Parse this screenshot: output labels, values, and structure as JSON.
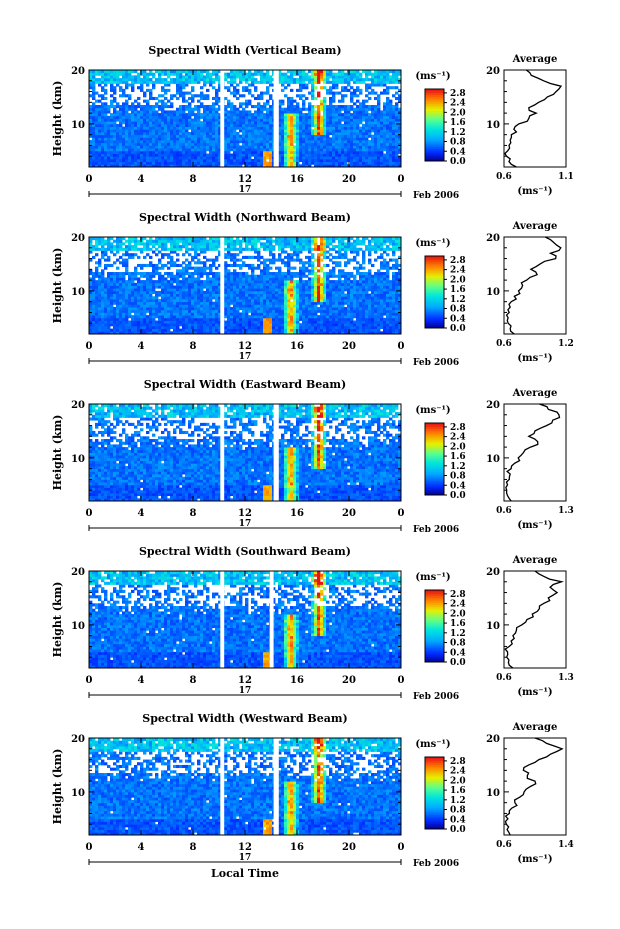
{
  "figure": {
    "xlabel": "Local Time",
    "date_label": "Feb 2006",
    "day_label": "17",
    "ylabel": "Height (km)",
    "unit_label": "(ms⁻¹)",
    "average_title": "Average"
  },
  "chart_data": [
    {
      "type": "heatmap",
      "title": "Spectral Width (Vertical Beam)",
      "xlabel": "Local Time",
      "ylabel": "Height (km)",
      "xticks": [
        "0",
        "4",
        "8",
        "12",
        "16",
        "20",
        "0"
      ],
      "xlim": [
        0,
        24
      ],
      "ylim": [
        2,
        20
      ],
      "yticks": [
        "10",
        "20"
      ],
      "colorbar": {
        "label": "(ms⁻¹)",
        "ticks": [
          "0.0",
          "0.4",
          "0.8",
          "1.2",
          "1.6",
          "2.0",
          "2.4",
          "2.8"
        ],
        "range": [
          0,
          2.8
        ]
      },
      "gaps_hours": [
        [
          10.1,
          10.4
        ],
        [
          14.2,
          14.6
        ]
      ],
      "profile": {
        "title": "Average",
        "xlabel": "(ms⁻¹)",
        "xticks": [
          "0.6",
          "1.1"
        ],
        "xlim": [
          0.6,
          1.1
        ],
        "yticks": [
          "10",
          "20"
        ],
        "height_km": [
          2,
          3,
          4,
          5,
          6,
          7,
          8,
          9,
          10,
          11,
          12,
          13,
          14,
          15,
          16,
          17,
          18,
          19,
          20
        ],
        "value": [
          0.7,
          0.64,
          0.62,
          0.63,
          0.64,
          0.65,
          0.66,
          0.68,
          0.72,
          0.8,
          0.86,
          0.8,
          0.88,
          0.95,
          1.02,
          1.06,
          0.92,
          0.82,
          0.78
        ]
      }
    },
    {
      "type": "heatmap",
      "title": "Spectral Width (Northward Beam)",
      "xlabel": "Local Time",
      "ylabel": "Height (km)",
      "xticks": [
        "0",
        "4",
        "8",
        "12",
        "16",
        "20",
        "0"
      ],
      "xlim": [
        0,
        24
      ],
      "ylim": [
        2,
        20
      ],
      "yticks": [
        "10",
        "20"
      ],
      "colorbar": {
        "label": "(ms⁻¹)",
        "ticks": [
          "0.0",
          "0.4",
          "0.8",
          "1.2",
          "1.6",
          "2.0",
          "2.4",
          "2.8"
        ],
        "range": [
          0,
          2.8
        ]
      },
      "gaps_hours": [
        [
          10.1,
          10.4
        ]
      ],
      "profile": {
        "title": "Average",
        "xlabel": "(ms⁻¹)",
        "xticks": [
          "0.6",
          "1.2"
        ],
        "xlim": [
          0.6,
          1.2
        ],
        "yticks": [
          "10",
          "20"
        ],
        "height_km": [
          2,
          3,
          4,
          5,
          6,
          7,
          8,
          9,
          10,
          11,
          12,
          13,
          14,
          15,
          16,
          17,
          18,
          19,
          20
        ],
        "value": [
          0.7,
          0.66,
          0.64,
          0.64,
          0.65,
          0.66,
          0.67,
          0.7,
          0.74,
          0.78,
          0.82,
          0.92,
          0.86,
          0.95,
          1.1,
          1.05,
          1.15,
          1.08,
          1.0
        ]
      }
    },
    {
      "type": "heatmap",
      "title": "Spectral Width (Eastward Beam)",
      "xlabel": "Local Time",
      "ylabel": "Height (km)",
      "xticks": [
        "0",
        "4",
        "8",
        "12",
        "16",
        "20",
        "0"
      ],
      "xlim": [
        0,
        24
      ],
      "ylim": [
        2,
        20
      ],
      "yticks": [
        "10",
        "20"
      ],
      "colorbar": {
        "label": "(ms⁻¹)",
        "ticks": [
          "0.0",
          "0.4",
          "0.8",
          "1.2",
          "1.6",
          "2.0",
          "2.4",
          "2.8"
        ],
        "range": [
          0,
          2.8
        ]
      },
      "gaps_hours": [
        [
          10.1,
          10.4
        ],
        [
          14.2,
          14.6
        ]
      ],
      "profile": {
        "title": "Average",
        "xlabel": "(ms⁻¹)",
        "xticks": [
          "0.6",
          "1.3"
        ],
        "xlim": [
          0.6,
          1.3
        ],
        "yticks": [
          "10",
          "20"
        ],
        "height_km": [
          2,
          3,
          4,
          5,
          6,
          7,
          8,
          9,
          10,
          11,
          12,
          13,
          14,
          15,
          16,
          17,
          18,
          19,
          20
        ],
        "value": [
          0.68,
          0.64,
          0.63,
          0.64,
          0.66,
          0.67,
          0.68,
          0.72,
          0.76,
          0.82,
          0.9,
          0.98,
          0.88,
          0.95,
          1.08,
          1.15,
          1.22,
          1.1,
          1.0
        ]
      }
    },
    {
      "type": "heatmap",
      "title": "Spectral Width (Southward Beam)",
      "xlabel": "Local Time",
      "ylabel": "Height (km)",
      "xticks": [
        "0",
        "4",
        "8",
        "12",
        "16",
        "20",
        "0"
      ],
      "xlim": [
        0,
        24
      ],
      "ylim": [
        2,
        20
      ],
      "yticks": [
        "10",
        "20"
      ],
      "colorbar": {
        "label": "(ms⁻¹)",
        "ticks": [
          "0.0",
          "0.4",
          "0.8",
          "1.2",
          "1.6",
          "2.0",
          "2.4",
          "2.8"
        ],
        "range": [
          0,
          2.8
        ]
      },
      "gaps_hours": [
        [
          10.1,
          10.4
        ],
        [
          13.9,
          14.2
        ]
      ],
      "profile": {
        "title": "Average",
        "xlabel": "(ms⁻¹)",
        "xticks": [
          "0.6",
          "1.3"
        ],
        "xlim": [
          0.6,
          1.3
        ],
        "yticks": [
          "10",
          "20"
        ],
        "height_km": [
          2,
          3,
          4,
          5,
          6,
          7,
          8,
          9,
          10,
          11,
          12,
          13,
          14,
          15,
          16,
          17,
          18,
          19,
          20
        ],
        "value": [
          0.7,
          0.65,
          0.63,
          0.64,
          0.66,
          0.68,
          0.7,
          0.74,
          0.8,
          0.86,
          0.92,
          1.0,
          1.05,
          1.1,
          1.2,
          1.12,
          1.25,
          1.05,
          0.95
        ]
      }
    },
    {
      "type": "heatmap",
      "title": "Spectral Width (Westward Beam)",
      "xlabel": "Local Time",
      "ylabel": "Height (km)",
      "xticks": [
        "0",
        "4",
        "8",
        "12",
        "16",
        "20",
        "0"
      ],
      "xlim": [
        0,
        24
      ],
      "ylim": [
        2,
        20
      ],
      "yticks": [
        "10",
        "20"
      ],
      "colorbar": {
        "label": "(ms⁻¹)",
        "ticks": [
          "0.0",
          "0.4",
          "0.8",
          "1.2",
          "1.6",
          "2.0",
          "2.4",
          "2.8"
        ],
        "range": [
          0,
          2.8
        ]
      },
      "gaps_hours": [
        [
          10.1,
          10.4
        ],
        [
          14.2,
          14.6
        ]
      ],
      "profile": {
        "title": "Average",
        "xlabel": "(ms⁻¹)",
        "xticks": [
          "0.6",
          "1.4"
        ],
        "xlim": [
          0.6,
          1.4
        ],
        "yticks": [
          "10",
          "20"
        ],
        "height_km": [
          2,
          3,
          4,
          5,
          6,
          7,
          8,
          9,
          10,
          11,
          12,
          13,
          14,
          15,
          16,
          17,
          18,
          19,
          20
        ],
        "value": [
          0.68,
          0.64,
          0.63,
          0.65,
          0.67,
          0.7,
          0.74,
          0.8,
          0.86,
          0.94,
          1.0,
          0.9,
          0.85,
          0.92,
          1.05,
          1.2,
          1.35,
          1.15,
          1.0
        ]
      }
    }
  ]
}
